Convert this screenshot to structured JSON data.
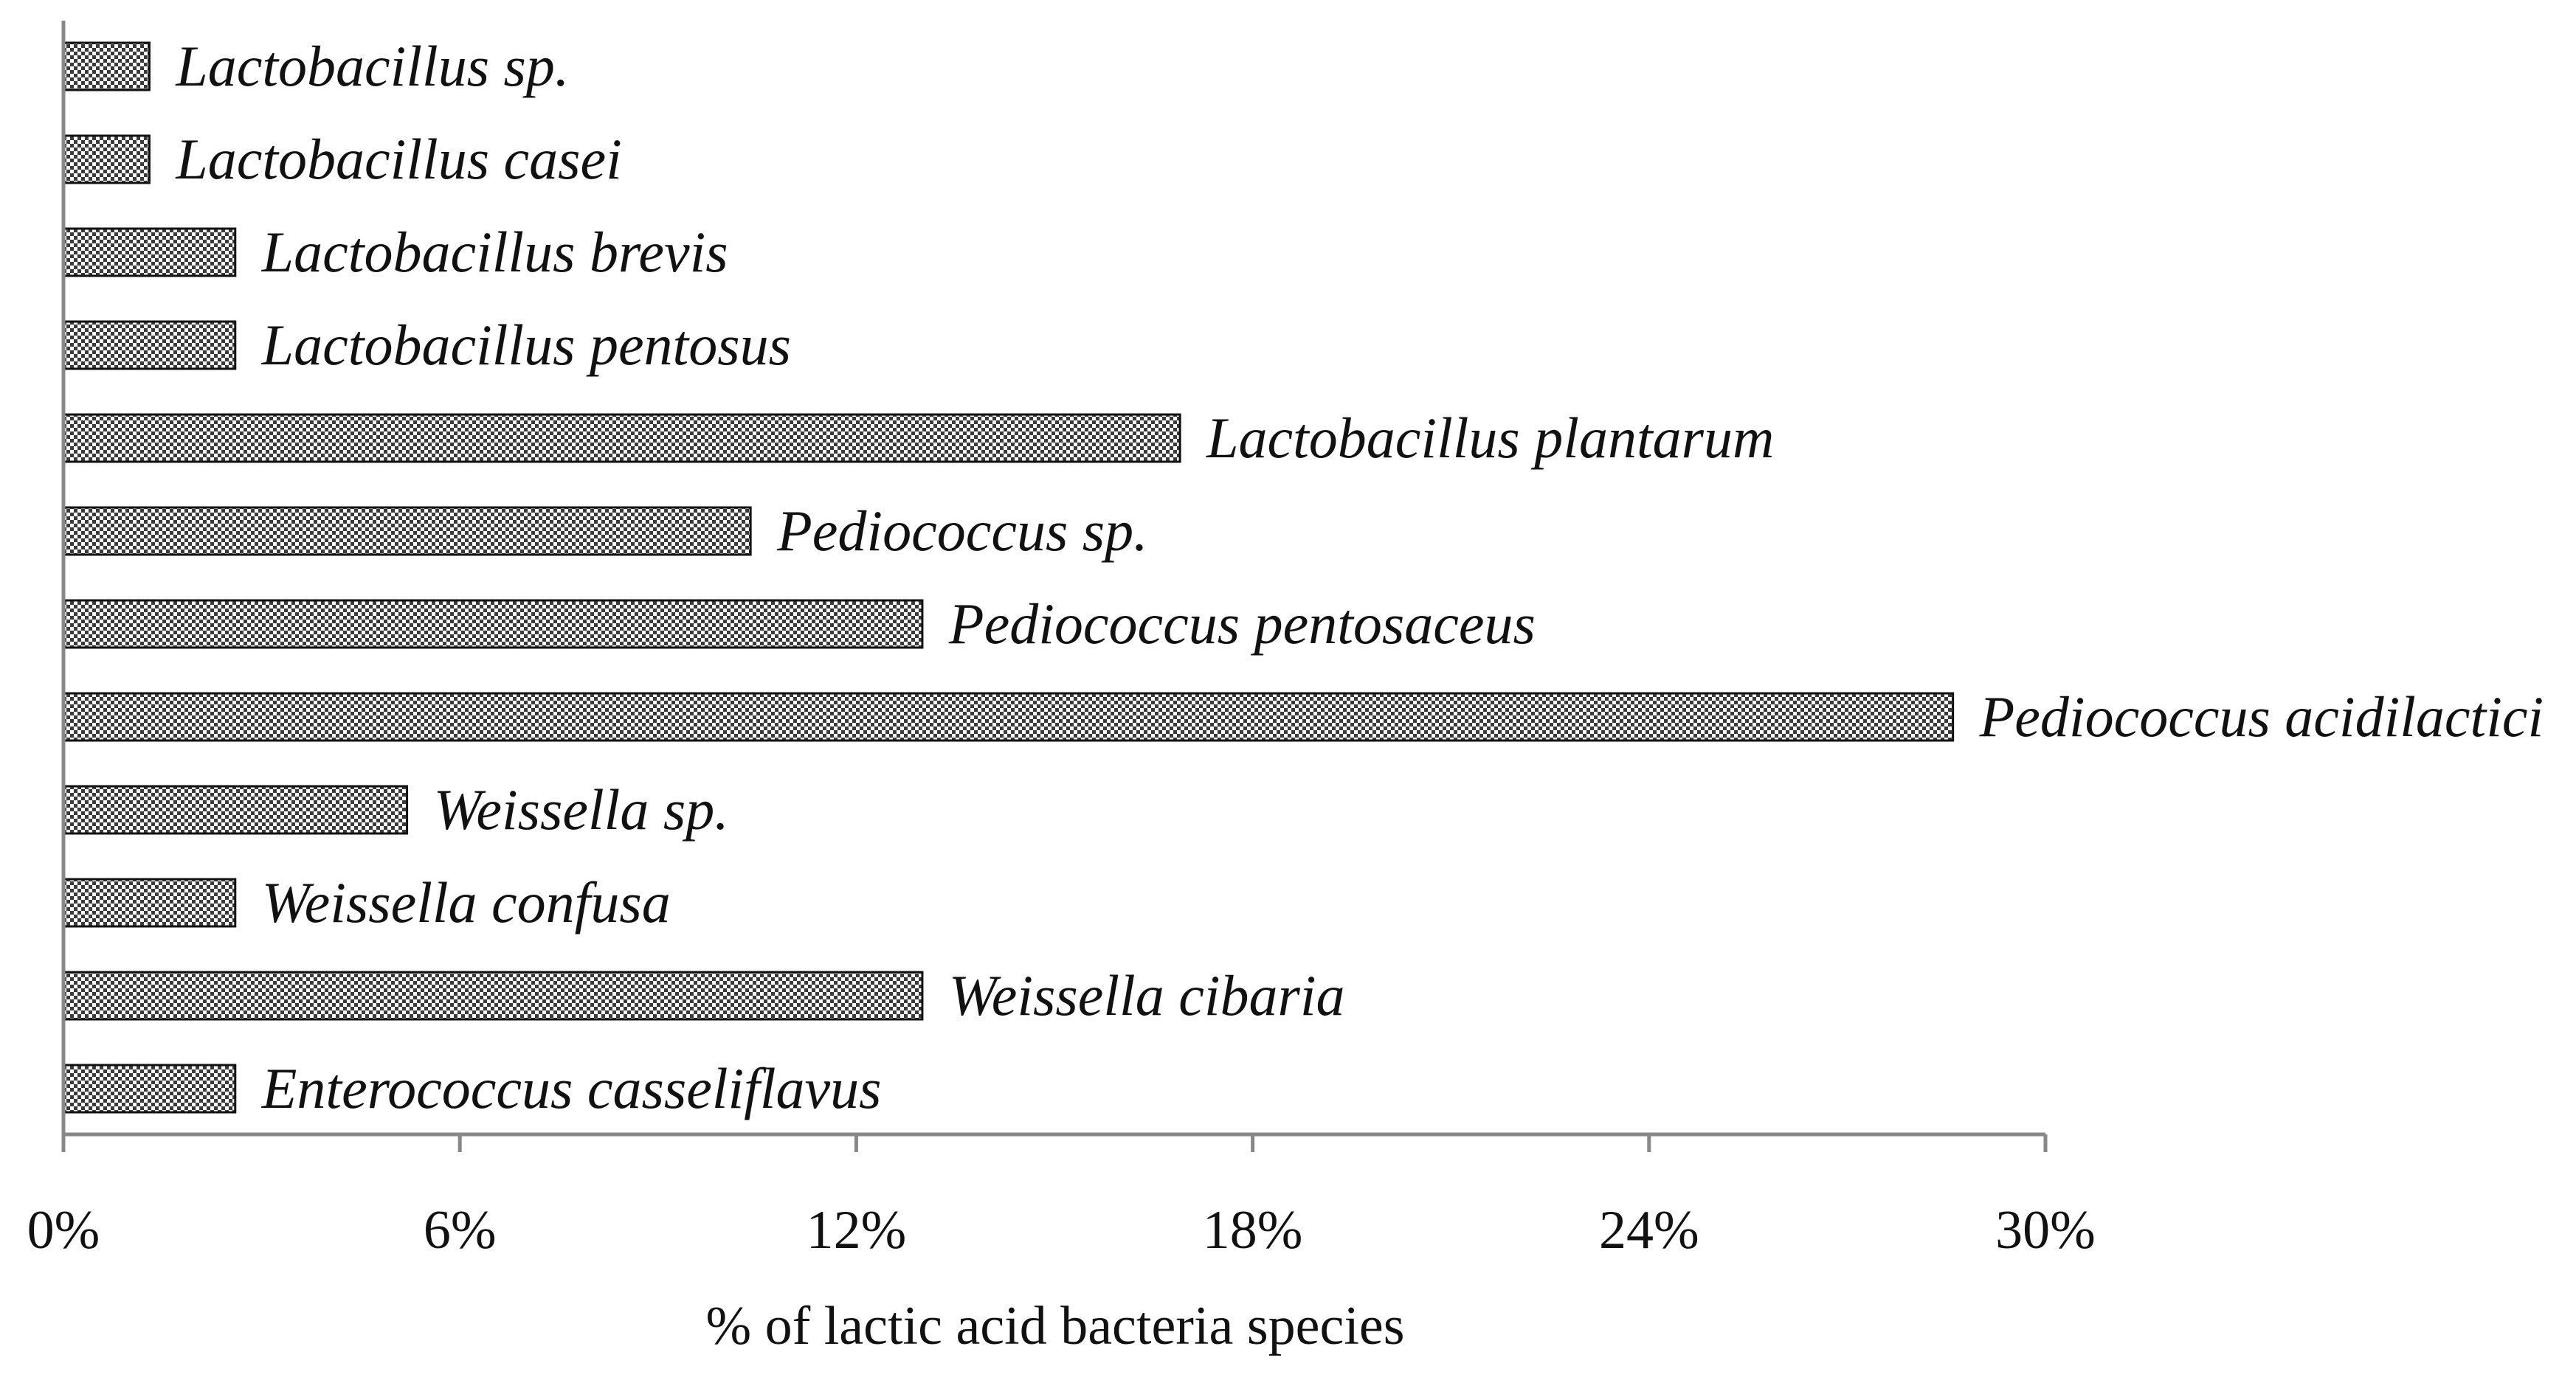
{
  "chart_data": {
    "type": "bar",
    "orientation": "horizontal",
    "categories": [
      "Lactobacillus sp.",
      "Lactobacillus casei",
      "Lactobacillus brevis",
      "Lactobacillus pentosus",
      "Lactobacillus plantarum",
      "Pediococcus sp.",
      "Pediococcus pentosaceus",
      "Pediococcus acidilactici",
      "Weissella sp.",
      "Weissella confusa",
      "Weissella cibaria",
      "Enterococcus casseliflavus"
    ],
    "values": [
      1.3,
      1.3,
      2.6,
      2.6,
      16.9,
      10.4,
      13.0,
      28.6,
      5.2,
      2.6,
      13.0,
      2.6
    ],
    "xlim": [
      0,
      30
    ],
    "xticks": [
      0,
      6,
      12,
      18,
      24,
      30
    ],
    "xtick_labels": [
      "0%",
      "6%",
      "12%",
      "18%",
      "24%",
      "30%"
    ],
    "xlabel": "% of lactic acid bacteria species",
    "ylabel": "",
    "title": "",
    "bar_fill": "checkered",
    "bar_colors": {
      "dark": "#3a3a3a",
      "light": "#ffffff",
      "border": "#111111"
    },
    "grid": false,
    "legend": false,
    "data_labels": "category names at bar ends"
  }
}
